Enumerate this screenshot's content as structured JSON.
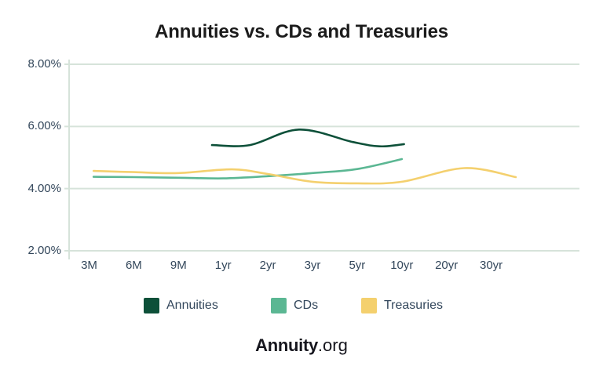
{
  "footer": {
    "brand_bold": "Annuity",
    "brand_suffix": ".org"
  },
  "colors": {
    "annuities": "#0D5039",
    "cds": "#5BB793",
    "treasuries": "#F4D06E",
    "grid": "#D6E3DA",
    "axis_text": "#33475B",
    "background": "#FFFFFF"
  },
  "chart_data": {
    "type": "line",
    "title": "Annuities vs. CDs and Treasuries",
    "categories": [
      "3M",
      "6M",
      "9M",
      "1yr",
      "2yr",
      "3yr",
      "5yr",
      "10yr",
      "20yr",
      "30yr"
    ],
    "y_tick_labels": [
      "8.00%",
      "6.00%",
      "4.00%",
      "2.00%"
    ],
    "y_tick_values": [
      8,
      6,
      4,
      2
    ],
    "ylim": [
      2,
      8
    ],
    "value_unit": "percent",
    "grid": "horizontal",
    "legend_position": "bottom",
    "x_unit": "category_index (0=3M, 1=6M, 2=9M, 3=1yr, 4=2yr, 5=3yr, 6=5yr, 7=10yr, 8=20yr, 9=30yr; fractional = between ticks as drawn)",
    "series": [
      {
        "name": "Annuities",
        "color": "#0D5039",
        "points": [
          [
            2.75,
            5.4
          ],
          [
            3.6,
            5.4
          ],
          [
            4.7,
            5.9
          ],
          [
            5.9,
            5.5
          ],
          [
            6.5,
            5.36
          ],
          [
            7.05,
            5.43
          ]
        ]
      },
      {
        "name": "CDs",
        "color": "#5BB793",
        "points": [
          [
            0.1,
            4.38
          ],
          [
            1,
            4.37
          ],
          [
            2,
            4.35
          ],
          [
            3,
            4.33
          ],
          [
            4,
            4.4
          ],
          [
            5,
            4.5
          ],
          [
            6,
            4.63
          ],
          [
            7,
            4.95
          ]
        ]
      },
      {
        "name": "Treasuries",
        "color": "#F4D06E",
        "points": [
          [
            0.1,
            4.57
          ],
          [
            1,
            4.53
          ],
          [
            2,
            4.5
          ],
          [
            3.2,
            4.62
          ],
          [
            4,
            4.47
          ],
          [
            5,
            4.22
          ],
          [
            6,
            4.17
          ],
          [
            7,
            4.22
          ],
          [
            8.4,
            4.66
          ],
          [
            9.55,
            4.37
          ]
        ]
      }
    ]
  }
}
